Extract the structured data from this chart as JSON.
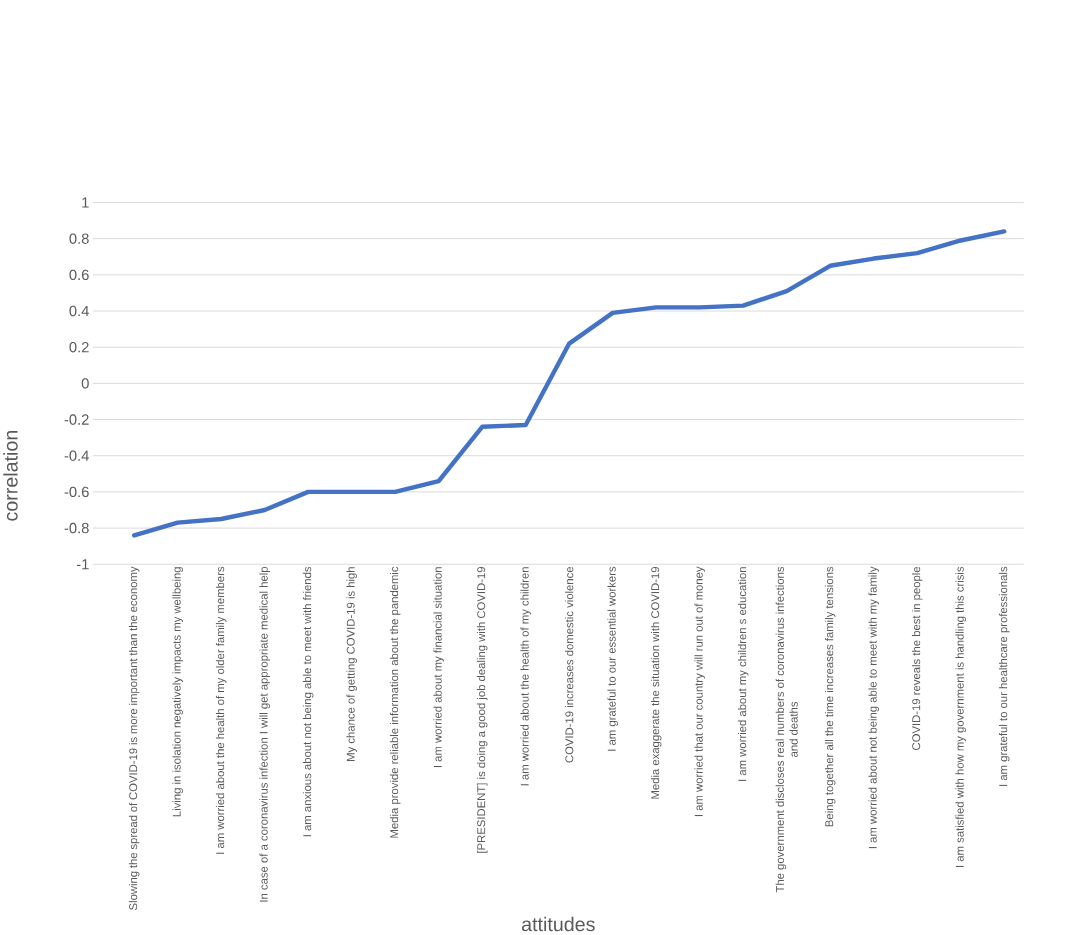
{
  "chart_data": {
    "type": "line",
    "xlabel": "attitudes",
    "ylabel": "correlation",
    "color": "#4472c4",
    "grid": "y",
    "ylim": [
      -1,
      1
    ],
    "yticks": [
      -1,
      -0.8,
      -0.6,
      -0.4,
      -0.2,
      0,
      0.2,
      0.4,
      0.6,
      0.8,
      1
    ],
    "categories": [
      "Slowing the spread of COVID-19 is more important than the economy",
      "Living in isolation negatively impacts my wellbeing",
      "I am worried about the health of my older family members",
      "In case of a coronavirus infection I will get appropriate medical help",
      "I am anxious about not being able to meet with friends",
      "My chance of getting COVID-19 is high",
      "Media provide reliable information about the pandemic",
      "I am worried about my financial situation",
      "[PRESIDENT] is doing a good job dealing with COVID-19",
      "I am worried about the health of my children",
      "COVID-19 increases domestic violence",
      "I am grateful to our essential workers",
      "Media exaggerate the situation with COVID-19",
      "I am worried that our country will run out of money",
      "I am worried about my children s education",
      "The government discloses real numbers of coronavirus infections and deaths",
      "Being together all the time increases family tensions",
      "I am worried about not being able to meet with my family",
      "COVID-19 reveals the best in people",
      "I am satisfied with how my government is handling this crisis",
      "I am grateful to our healthcare professionals"
    ],
    "values": [
      -0.84,
      -0.77,
      -0.75,
      -0.7,
      -0.6,
      -0.6,
      -0.6,
      -0.54,
      -0.24,
      -0.23,
      0.22,
      0.39,
      0.42,
      0.42,
      0.43,
      0.51,
      0.65,
      0.69,
      0.72,
      0.79,
      0.84
    ]
  }
}
